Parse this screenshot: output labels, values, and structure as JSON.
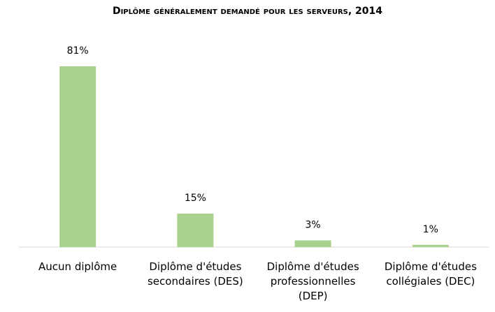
{
  "chart_data": {
    "type": "bar",
    "title": "Diplôme généralement demandé pour les serveurs, 2014",
    "categories": [
      "Aucun diplôme",
      "Diplôme d'études secondaires (DES)",
      "Diplôme d'études professionnelles (DEP)",
      "Diplôme d'études collégiales (DEC)"
    ],
    "values": [
      81,
      15,
      3,
      1
    ],
    "value_labels": [
      "81%",
      "15%",
      "3%",
      "1%"
    ],
    "color": "#a9d18e"
  }
}
